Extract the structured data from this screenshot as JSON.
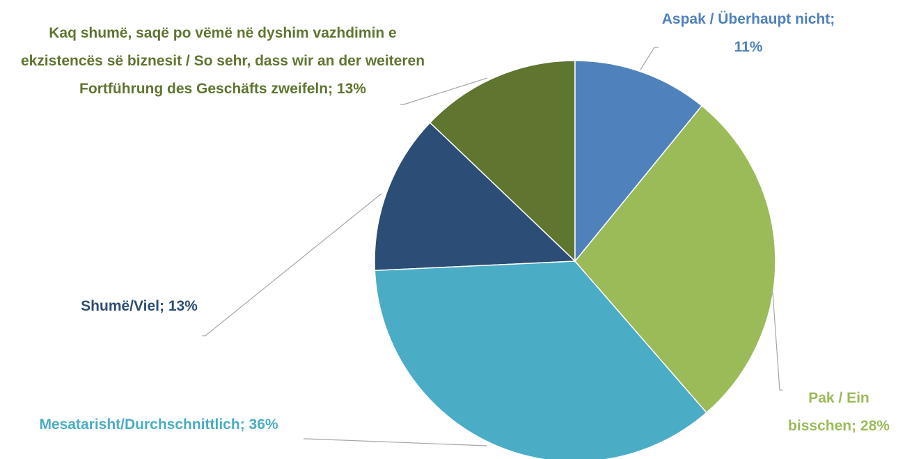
{
  "chart_data": {
    "type": "pie",
    "categories": [
      "Aspak / Überhaupt nicht",
      "Pak / Ein bisschen",
      "Mesatarisht/Durchschnittlich",
      "Shumë/Viel",
      "Kaq shumë, saqë po vëmë në dyshim vazhdimin e ekzistencës së biznesit / So sehr, dass wir an der weiteren Fortführung des Geschäfts zweifeln"
    ],
    "values": [
      11,
      28,
      36,
      13,
      13
    ],
    "value_labels": [
      "11%",
      "28%",
      "36%",
      "13%",
      "13%"
    ],
    "colors": [
      "#4f81bd",
      "#9bbb59",
      "#4bacc6",
      "#2c4d75",
      "#5f7530"
    ]
  }
}
